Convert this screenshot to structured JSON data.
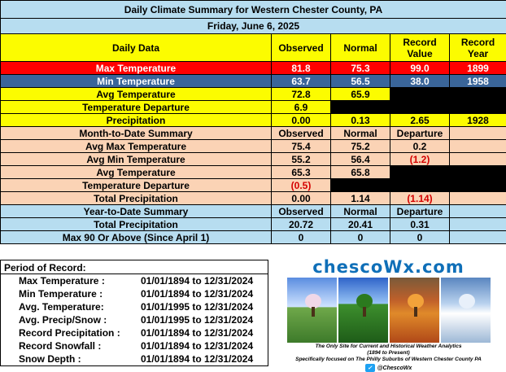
{
  "header": {
    "title": "Daily Climate Summary for Western Chester County, PA",
    "date": "Friday, June 6, 2025"
  },
  "columns": {
    "label": "Daily Data",
    "observed": "Observed",
    "normal": "Normal",
    "record_value": "Record Value",
    "record_year": "Record Year"
  },
  "daily": {
    "max_temp": {
      "label": "Max Temperature",
      "observed": "81.8",
      "normal": "75.3",
      "record": "99.0",
      "year": "1899"
    },
    "min_temp": {
      "label": "Min Temperature",
      "observed": "63.7",
      "normal": "56.5",
      "record": "38.0",
      "year": "1958"
    },
    "avg_temp": {
      "label": "Avg Temperature",
      "observed": "72.8",
      "normal": "65.9"
    },
    "temp_dep": {
      "label": "Temperature Departure",
      "observed": "6.9"
    },
    "precip": {
      "label": "Precipitation",
      "observed": "0.00",
      "normal": "0.13",
      "record": "2.65",
      "year": "1928"
    }
  },
  "month": {
    "header": {
      "label": "Month-to-Date Summary",
      "observed": "Observed",
      "normal": "Normal",
      "departure": "Departure"
    },
    "avg_max": {
      "label": "Avg Max Temperature",
      "observed": "75.4",
      "normal": "75.2",
      "departure": "0.2"
    },
    "avg_min": {
      "label": "Avg Min Temperature",
      "observed": "55.2",
      "normal": "56.4",
      "departure": "(1.2)"
    },
    "avg_temp": {
      "label": "Avg Temperature",
      "observed": "65.3",
      "normal": "65.8"
    },
    "temp_dep": {
      "label": "Temperature Departure",
      "observed": "(0.5)"
    },
    "precip": {
      "label": "Total Precipitation",
      "observed": "0.00",
      "normal": "1.14",
      "departure": "(1.14)"
    }
  },
  "year": {
    "header": {
      "label": "Year-to-Date Summary",
      "observed": "Observed",
      "normal": "Normal",
      "departure": "Departure"
    },
    "precip": {
      "label": "Total Precipitation",
      "observed": "20.72",
      "normal": "20.41",
      "departure": "0.31"
    },
    "max90": {
      "label": "Max 90 Or Above (Since April 1)",
      "observed": "0",
      "normal": "0",
      "departure": "0"
    }
  },
  "period_of_record": {
    "title": "Period of Record:",
    "rows": [
      {
        "label": "Max Temperature :",
        "value": "01/01/1894 to 12/31/2024"
      },
      {
        "label": "Min Temperature :",
        "value": "01/01/1894 to 12/31/2024"
      },
      {
        "label": "Avg. Temperature:",
        "value": "01/01/1995 to 12/31/2024"
      },
      {
        "label": "Avg. Precip/Snow :",
        "value": "01/01/1995 to 12/31/2024"
      },
      {
        "label": "Record Precipitation :",
        "value": "01/01/1894 to 12/31/2024"
      },
      {
        "label": "Record Snowfall :",
        "value": "01/01/1894 to 12/31/2024"
      },
      {
        "label": "Snow Depth :",
        "value": "01/01/1894 to 12/31/2024"
      }
    ]
  },
  "logo": {
    "name": "chescoWx.com",
    "tagline1": "The Only Site for Current and Historical Weather Analytics",
    "tagline2": "(1894 to Present)",
    "tagline3": "Specifically focused on The Philly Suburbs of Western Chester County PA",
    "twitter": "@ChescoWx",
    "icon": "twitter-icon"
  },
  "colors": {
    "header_blue": "#b7ddf0",
    "yellow": "#fcfc00",
    "max_red": "#ff0000",
    "min_blue": "#3a6599",
    "peach": "#fbd3b5",
    "negative_red": "#d40000"
  }
}
